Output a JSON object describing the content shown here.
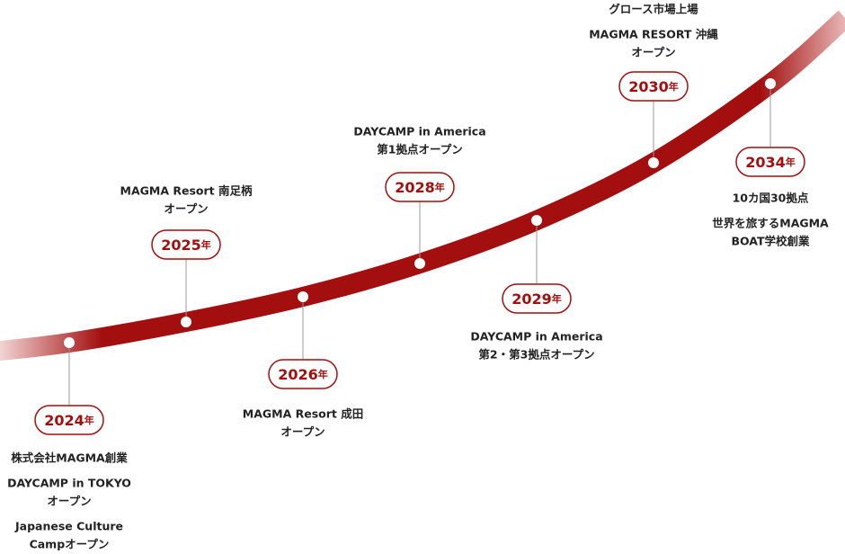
{
  "milestones": [
    {
      "year": "2024",
      "suffix": "年",
      "notes": [
        [
          "株式会社MAGMA創業"
        ],
        [
          "DAYCAMP in TOKYO",
          "オープン"
        ],
        [
          "Japanese Culture",
          "Campオープン"
        ]
      ]
    },
    {
      "year": "2025",
      "suffix": "年",
      "notes": [
        [
          "MAGMA Resort 南足柄",
          "オープン"
        ]
      ]
    },
    {
      "year": "2026",
      "suffix": "年",
      "notes": [
        [
          "MAGMA Resort 成田",
          "オープン"
        ]
      ]
    },
    {
      "year": "2028",
      "suffix": "年",
      "notes": [
        [
          "DAYCAMP in America",
          "第1拠点オープン"
        ]
      ]
    },
    {
      "year": "2029",
      "suffix": "年",
      "notes": [
        [
          "DAYCAMP in America",
          "第2・第3拠点オープン"
        ]
      ]
    },
    {
      "year": "2030",
      "suffix": "年",
      "notes": [
        [
          "グロース市場上場"
        ],
        [
          "MAGMA RESORT 沖縄",
          "オープン"
        ]
      ]
    },
    {
      "year": "2034",
      "suffix": "年",
      "notes": [
        [
          "10カ国30拠点"
        ],
        [
          "世界を旅するMAGMA",
          "BOAT学校創業"
        ]
      ]
    }
  ]
}
